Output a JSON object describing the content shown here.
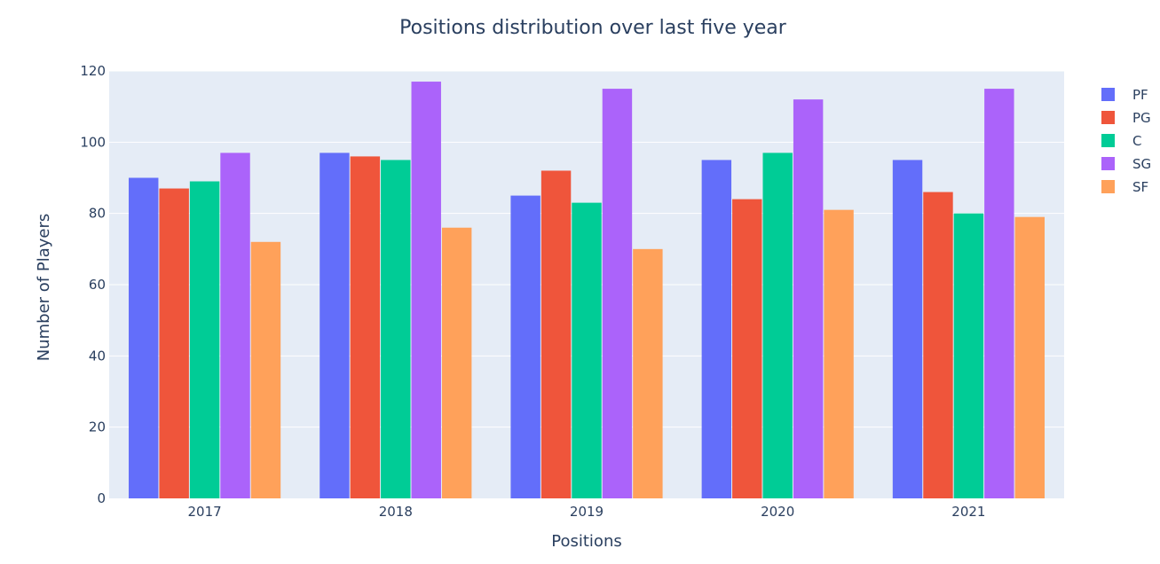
{
  "chart_data": {
    "type": "bar",
    "title": "Positions distribution over last five year",
    "xlabel": "Positions",
    "ylabel": "Number of Players",
    "categories": [
      "2017",
      "2018",
      "2019",
      "2020",
      "2021"
    ],
    "ylim": [
      0,
      120
    ],
    "yticks": [
      0,
      20,
      40,
      60,
      80,
      100,
      120
    ],
    "grid": true,
    "legend_position": "top-right",
    "plot_background": "#e5ecf6",
    "series": [
      {
        "name": "PF",
        "color": "#636efa",
        "values": [
          90,
          97,
          85,
          95,
          95
        ]
      },
      {
        "name": "PG",
        "color": "#ef553b",
        "values": [
          87,
          96,
          92,
          84,
          86
        ]
      },
      {
        "name": "C",
        "color": "#00cc96",
        "values": [
          89,
          95,
          83,
          97,
          80
        ]
      },
      {
        "name": "SG",
        "color": "#ab63fa",
        "values": [
          97,
          117,
          115,
          112,
          115
        ]
      },
      {
        "name": "SF",
        "color": "#ffa15a",
        "values": [
          72,
          76,
          70,
          81,
          79
        ]
      }
    ]
  }
}
